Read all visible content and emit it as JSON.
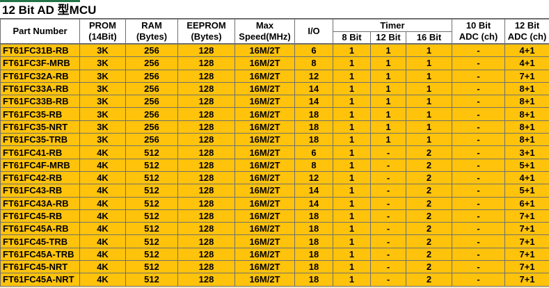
{
  "title": "12 Bit AD 型MCU",
  "colors": {
    "accent_bar": "#217346",
    "row_fill": "#ffc30b",
    "header_bg": "#ffffff",
    "grid": "#6f6f6f",
    "partial_row": "#f6eccb",
    "text": "#000000"
  },
  "table": {
    "headers": {
      "part_number": "Part Number",
      "prom": [
        "PROM",
        "(14Bit)"
      ],
      "ram": [
        "RAM",
        "(Bytes)"
      ],
      "eeprom": [
        "EEPROM",
        "(Bytes)"
      ],
      "max_speed": [
        "Max",
        "Speed(MHz)"
      ],
      "io": "I/O",
      "timer_group": "Timer",
      "timer_8": "8 Bit",
      "timer_12": "12 Bit",
      "timer_16": "16 Bit",
      "adc10": [
        "10 Bit",
        "ADC (ch)"
      ],
      "adc12": [
        "12 Bit",
        "ADC (ch)"
      ]
    },
    "rows": [
      {
        "part_number": "FT61FC31B-RB",
        "prom": "3K",
        "ram": "256",
        "eeprom": "128",
        "max_speed": "16M/2T",
        "io": "6",
        "timer_8bit": "1",
        "timer_12bit": "1",
        "timer_16bit": "1",
        "adc_10bit": "-",
        "adc_12bit": "4+1"
      },
      {
        "part_number": "FT61FC3F-MRB",
        "prom": "3K",
        "ram": "256",
        "eeprom": "128",
        "max_speed": "16M/2T",
        "io": "8",
        "timer_8bit": "1",
        "timer_12bit": "1",
        "timer_16bit": "1",
        "adc_10bit": "-",
        "adc_12bit": "4+1"
      },
      {
        "part_number": "FT61FC32A-RB",
        "prom": "3K",
        "ram": "256",
        "eeprom": "128",
        "max_speed": "16M/2T",
        "io": "12",
        "timer_8bit": "1",
        "timer_12bit": "1",
        "timer_16bit": "1",
        "adc_10bit": "-",
        "adc_12bit": "7+1"
      },
      {
        "part_number": "FT61FC33A-RB",
        "prom": "3K",
        "ram": "256",
        "eeprom": "128",
        "max_speed": "16M/2T",
        "io": "14",
        "timer_8bit": "1",
        "timer_12bit": "1",
        "timer_16bit": "1",
        "adc_10bit": "-",
        "adc_12bit": "8+1"
      },
      {
        "part_number": "FT61FC33B-RB",
        "prom": "3K",
        "ram": "256",
        "eeprom": "128",
        "max_speed": "16M/2T",
        "io": "14",
        "timer_8bit": "1",
        "timer_12bit": "1",
        "timer_16bit": "1",
        "adc_10bit": "-",
        "adc_12bit": "8+1"
      },
      {
        "part_number": "FT61FC35-RB",
        "prom": "3K",
        "ram": "256",
        "eeprom": "128",
        "max_speed": "16M/2T",
        "io": "18",
        "timer_8bit": "1",
        "timer_12bit": "1",
        "timer_16bit": "1",
        "adc_10bit": "-",
        "adc_12bit": "8+1"
      },
      {
        "part_number": "FT61FC35-NRT",
        "prom": "3K",
        "ram": "256",
        "eeprom": "128",
        "max_speed": "16M/2T",
        "io": "18",
        "timer_8bit": "1",
        "timer_12bit": "1",
        "timer_16bit": "1",
        "adc_10bit": "-",
        "adc_12bit": "8+1"
      },
      {
        "part_number": "FT61FC35-TRB",
        "prom": "3K",
        "ram": "256",
        "eeprom": "128",
        "max_speed": "16M/2T",
        "io": "18",
        "timer_8bit": "1",
        "timer_12bit": "1",
        "timer_16bit": "1",
        "adc_10bit": "-",
        "adc_12bit": "8+1"
      },
      {
        "part_number": "FT61FC41-RB",
        "prom": "4K",
        "ram": "512",
        "eeprom": "128",
        "max_speed": "16M/2T",
        "io": "6",
        "timer_8bit": "1",
        "timer_12bit": "-",
        "timer_16bit": "2",
        "adc_10bit": "-",
        "adc_12bit": "3+1"
      },
      {
        "part_number": "FT61FC4F-MRB",
        "prom": "4K",
        "ram": "512",
        "eeprom": "128",
        "max_speed": "16M/2T",
        "io": "8",
        "timer_8bit": "1",
        "timer_12bit": "-",
        "timer_16bit": "2",
        "adc_10bit": "-",
        "adc_12bit": "5+1"
      },
      {
        "part_number": "FT61FC42-RB",
        "prom": "4K",
        "ram": "512",
        "eeprom": "128",
        "max_speed": "16M/2T",
        "io": "12",
        "timer_8bit": "1",
        "timer_12bit": "-",
        "timer_16bit": "2",
        "adc_10bit": "-",
        "adc_12bit": "4+1"
      },
      {
        "part_number": "FT61FC43-RB",
        "prom": "4K",
        "ram": "512",
        "eeprom": "128",
        "max_speed": "16M/2T",
        "io": "14",
        "timer_8bit": "1",
        "timer_12bit": "-",
        "timer_16bit": "2",
        "adc_10bit": "-",
        "adc_12bit": "5+1"
      },
      {
        "part_number": "FT61FC43A-RB",
        "prom": "4K",
        "ram": "512",
        "eeprom": "128",
        "max_speed": "16M/2T",
        "io": "14",
        "timer_8bit": "1",
        "timer_12bit": "-",
        "timer_16bit": "2",
        "adc_10bit": "-",
        "adc_12bit": "6+1"
      },
      {
        "part_number": "FT61FC45-RB",
        "prom": "4K",
        "ram": "512",
        "eeprom": "128",
        "max_speed": "16M/2T",
        "io": "18",
        "timer_8bit": "1",
        "timer_12bit": "-",
        "timer_16bit": "2",
        "adc_10bit": "-",
        "adc_12bit": "7+1"
      },
      {
        "part_number": "FT61FC45A-RB",
        "prom": "4K",
        "ram": "512",
        "eeprom": "128",
        "max_speed": "16M/2T",
        "io": "18",
        "timer_8bit": "1",
        "timer_12bit": "-",
        "timer_16bit": "2",
        "adc_10bit": "-",
        "adc_12bit": "7+1"
      },
      {
        "part_number": "FT61FC45-TRB",
        "prom": "4K",
        "ram": "512",
        "eeprom": "128",
        "max_speed": "16M/2T",
        "io": "18",
        "timer_8bit": "1",
        "timer_12bit": "-",
        "timer_16bit": "2",
        "adc_10bit": "-",
        "adc_12bit": "7+1"
      },
      {
        "part_number": "FT61FC45A-TRB",
        "prom": "4K",
        "ram": "512",
        "eeprom": "128",
        "max_speed": "16M/2T",
        "io": "18",
        "timer_8bit": "1",
        "timer_12bit": "-",
        "timer_16bit": "2",
        "adc_10bit": "-",
        "adc_12bit": "7+1"
      },
      {
        "part_number": "FT61FC45-NRT",
        "prom": "4K",
        "ram": "512",
        "eeprom": "128",
        "max_speed": "16M/2T",
        "io": "18",
        "timer_8bit": "1",
        "timer_12bit": "-",
        "timer_16bit": "2",
        "adc_10bit": "-",
        "adc_12bit": "7+1"
      },
      {
        "part_number": "FT61FC45A-NRT",
        "prom": "4K",
        "ram": "512",
        "eeprom": "128",
        "max_speed": "16M/2T",
        "io": "18",
        "timer_8bit": "1",
        "timer_12bit": "-",
        "timer_16bit": "2",
        "adc_10bit": "-",
        "adc_12bit": "7+1"
      }
    ]
  }
}
